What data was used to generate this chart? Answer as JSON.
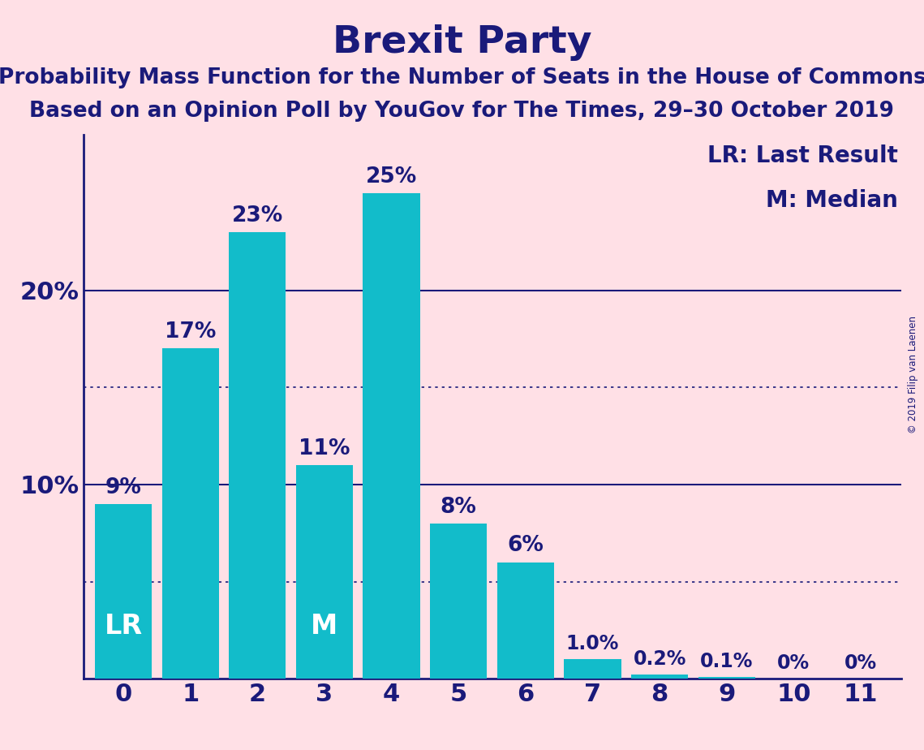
{
  "title": "Brexit Party",
  "subtitle1": "Probability Mass Function for the Number of Seats in the House of Commons",
  "subtitle2": "Based on an Opinion Poll by YouGov for The Times, 29–30 October 2019",
  "copyright": "© 2019 Filip van Laenen",
  "categories": [
    0,
    1,
    2,
    3,
    4,
    5,
    6,
    7,
    8,
    9,
    10,
    11
  ],
  "values": [
    9,
    17,
    23,
    11,
    25,
    8,
    6,
    1.0,
    0.2,
    0.1,
    0,
    0
  ],
  "bar_labels": [
    "9%",
    "17%",
    "23%",
    "11%",
    "25%",
    "8%",
    "6%",
    "1.0%",
    "0.2%",
    "0.1%",
    "0%",
    "0%"
  ],
  "bar_color_teal": "#12BCCA",
  "background_color": "#FFE0E6",
  "text_color": "#1A1A7A",
  "lr_label_bar": 0,
  "m_label_bar": 3,
  "lr_label": "LR",
  "m_label": "M",
  "legend_text1": "LR: Last Result",
  "legend_text2": "M: Median",
  "ylim": [
    0,
    28
  ],
  "dotted_lines": [
    15,
    5
  ],
  "solid_lines": [
    10,
    20
  ],
  "title_fontsize": 34,
  "subtitle_fontsize": 19,
  "bar_label_fontsize": 19,
  "ytick_fontsize": 22,
  "xtick_fontsize": 22,
  "legend_fontsize": 20,
  "lr_m_fontsize": 24
}
